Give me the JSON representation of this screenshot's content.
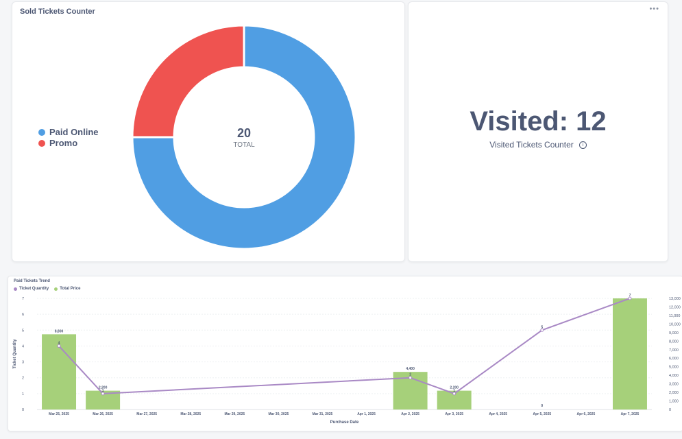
{
  "sold_card": {
    "title": "Sold Tickets Counter",
    "center_value": "20",
    "center_label": "TOTAL",
    "legend": [
      {
        "label": "Paid Online",
        "color": "#509ee3"
      },
      {
        "label": "Promo",
        "color": "#ef5350"
      }
    ]
  },
  "visited_card": {
    "more_label": "•••",
    "value": "Visited: 12",
    "label": "Visited Tickets Counter",
    "info_icon": "i"
  },
  "trend_card": {
    "title": "Paid Tickets Trend",
    "legend": [
      {
        "label": "Ticket Quantity",
        "color": "#a989c5"
      },
      {
        "label": "Total Price",
        "color": "#a6d07a"
      }
    ]
  },
  "chart_data": [
    {
      "type": "pie",
      "title": "Sold Tickets Counter",
      "categories": [
        "Paid Online",
        "Promo"
      ],
      "values": [
        15,
        5
      ],
      "colors": [
        "#509ee3",
        "#ef5350"
      ],
      "total": 20,
      "total_label": "TOTAL"
    },
    {
      "type": "bar",
      "title": "Paid Tickets Trend",
      "xlabel": "Purchase Date",
      "ylabel": "Ticket Quantity",
      "categories": [
        "Mar 25, 2025",
        "Mar 26, 2025",
        "Mar 27, 2025",
        "Mar 28, 2025",
        "Mar 29, 2025",
        "Mar 30, 2025",
        "Mar 31, 2025",
        "Apr 1, 2025",
        "Apr 2, 2025",
        "Apr 3, 2025",
        "Apr 4, 2025",
        "Apr 5, 2025",
        "Apr 6, 2025",
        "Apr 7, 2025"
      ],
      "ylim_left": [
        0,
        7
      ],
      "yticks_left": [
        0,
        1,
        2,
        3,
        4,
        5,
        6,
        7
      ],
      "ylim_right": [
        0,
        13000
      ],
      "yticks_right": [
        0,
        1000,
        2000,
        3000,
        4000,
        5000,
        6000,
        7000,
        8000,
        9000,
        10000,
        11000,
        12000,
        13000
      ],
      "yticks_right_labels": [
        "0",
        "1,000",
        "2,000",
        "3,000",
        "4,000",
        "5,000",
        "6,000",
        "7,000",
        "8,000",
        "9,000",
        "10,000",
        "11,000",
        "12,000",
        "13,000"
      ],
      "series": [
        {
          "name": "Total Price",
          "type": "bar",
          "axis": "right",
          "color": "#a6d07a",
          "points": [
            {
              "x": "Mar 25, 2025",
              "y": 8800,
              "label": "8,800"
            },
            {
              "x": "Mar 26, 2025",
              "y": 2200,
              "label": "2,200"
            },
            {
              "x": "Apr 2, 2025",
              "y": 4400,
              "label": "4,400"
            },
            {
              "x": "Apr 3, 2025",
              "y": 2200,
              "label": "2,200"
            },
            {
              "x": "Apr 5, 2025",
              "y": 0,
              "label": "0"
            },
            {
              "x": "Apr 7, 2025",
              "y": 13000,
              "label": ""
            }
          ]
        },
        {
          "name": "Ticket Quantity",
          "type": "line",
          "axis": "left",
          "color": "#a989c5",
          "points": [
            {
              "x": "Mar 25, 2025",
              "y": 4,
              "label": "4"
            },
            {
              "x": "Mar 26, 2025",
              "y": 1,
              "label": "1"
            },
            {
              "x": "Apr 2, 2025",
              "y": 2,
              "label": "2"
            },
            {
              "x": "Apr 3, 2025",
              "y": 1,
              "label": "1"
            },
            {
              "x": "Apr 5, 2025",
              "y": 5,
              "label": "5"
            },
            {
              "x": "Apr 7, 2025",
              "y": 7,
              "label": "7"
            }
          ]
        }
      ]
    }
  ]
}
